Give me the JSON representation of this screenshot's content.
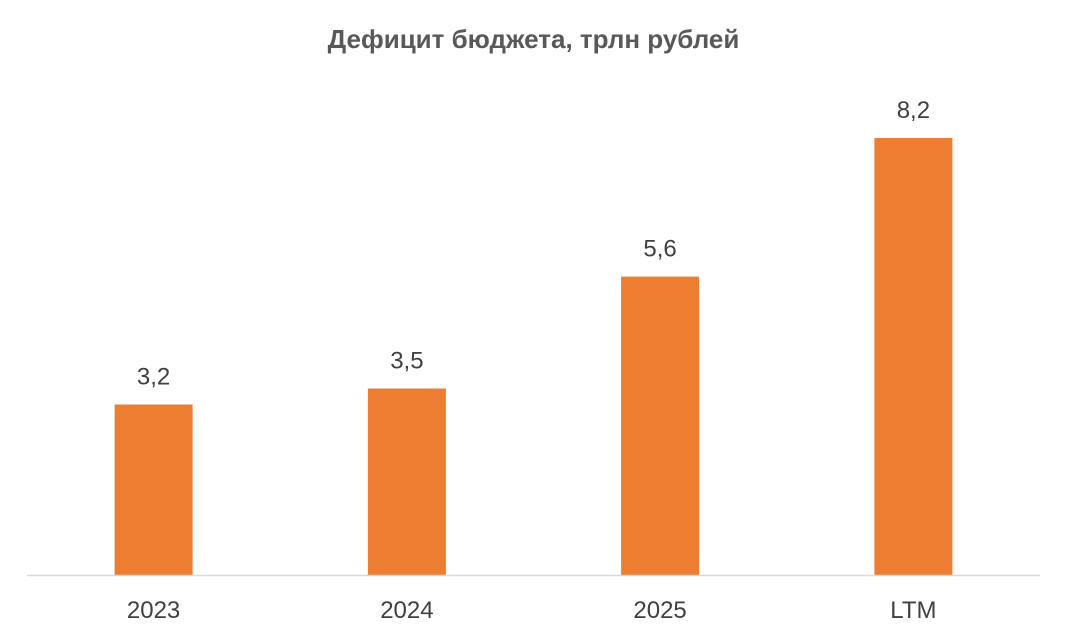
{
  "chart_data": {
    "type": "bar",
    "title": "Дефицит бюджета, трлн рублей",
    "categories": [
      "2023",
      "2024",
      "2025",
      "LTM"
    ],
    "values": [
      3.2,
      3.5,
      5.6,
      8.2
    ],
    "value_labels": [
      "3,2",
      "3,5",
      "5,6",
      "8,2"
    ],
    "xlabel": "",
    "ylabel": "",
    "ylim": [
      0,
      8.2
    ],
    "grid": false,
    "legend": "none",
    "bar_color": "#ED7D31",
    "axis_color": "#D9D9D9"
  }
}
